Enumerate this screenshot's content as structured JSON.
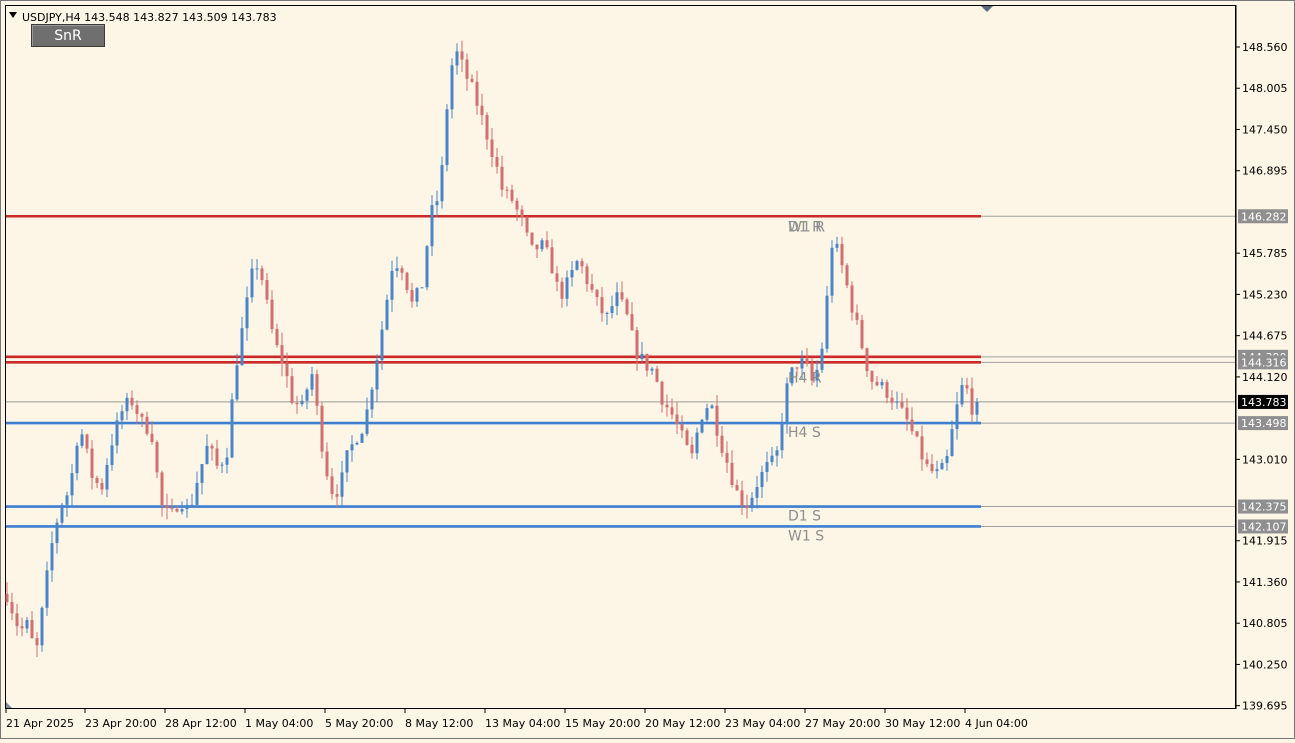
{
  "symbol_line": "USDJPY,H4  143.548 143.827 143.509 143.783",
  "snr_button": {
    "label": "SnR"
  },
  "colors": {
    "background": "#fdf5e6",
    "bull": "#4a86c7",
    "bear": "#d07070",
    "resistance": "#cc2a2a",
    "support": "#3f7fd0",
    "price_tag": "#8f8f8f",
    "current_tag": "#000000",
    "level_text": "#8e8e8e"
  },
  "chart_data": {
    "type": "candlestick",
    "title": "USDJPY,H4",
    "ohlc_header": {
      "open": 143.548,
      "high": 143.827,
      "low": 143.509,
      "close": 143.783
    },
    "ylim": [
      139.6,
      149.05
    ],
    "y_ticks": [
      "148.560",
      "148.005",
      "147.450",
      "146.895",
      "145.785",
      "145.230",
      "144.675",
      "144.120",
      "143.010",
      "141.915",
      "141.360",
      "140.805",
      "140.250",
      "139.695"
    ],
    "x_ticks": [
      "21 Apr 2025",
      "23 Apr 20:00",
      "28 Apr 12:00",
      "1 May 04:00",
      "5 May 20:00",
      "8 May 12:00",
      "13 May 04:00",
      "15 May 20:00",
      "20 May 12:00",
      "23 May 04:00",
      "27 May 20:00",
      "30 May 12:00",
      "4 Jun 04:00"
    ],
    "candle_count": 195,
    "waypoints": [
      [
        0,
        141.2
      ],
      [
        4,
        140.7
      ],
      [
        7,
        140.8
      ],
      [
        9,
        140.3
      ],
      [
        11,
        140.9
      ],
      [
        14,
        141.8
      ],
      [
        17,
        142.4
      ],
      [
        20,
        142.6
      ],
      [
        23,
        143.5
      ],
      [
        27,
        142.8
      ],
      [
        30,
        142.6
      ],
      [
        33,
        143.2
      ],
      [
        37,
        143.7
      ],
      [
        40,
        143.8
      ],
      [
        43,
        143.5
      ],
      [
        46,
        143.4
      ],
      [
        49,
        142.4
      ],
      [
        52,
        142.2
      ],
      [
        55,
        142.5
      ],
      [
        58,
        142.3
      ],
      [
        61,
        142.8
      ],
      [
        64,
        143.2
      ],
      [
        67,
        142.9
      ],
      [
        70,
        143.1
      ],
      [
        73,
        144.3
      ],
      [
        76,
        145.0
      ],
      [
        79,
        145.7
      ],
      [
        81,
        145.5
      ],
      [
        84,
        144.8
      ],
      [
        86,
        144.5
      ],
      [
        88,
        144.3
      ],
      [
        91,
        143.8
      ],
      [
        94,
        143.7
      ],
      [
        97,
        144.2
      ],
      [
        100,
        143.3
      ],
      [
        103,
        142.6
      ],
      [
        106,
        142.6
      ],
      [
        108,
        143.0
      ],
      [
        111,
        143.3
      ],
      [
        114,
        143.5
      ],
      [
        117,
        144.2
      ],
      [
        120,
        144.9
      ],
      [
        123,
        145.7
      ],
      [
        126,
        145.6
      ],
      [
        129,
        145.1
      ],
      [
        132,
        145.3
      ],
      [
        135,
        146.3
      ],
      [
        138,
        146.6
      ],
      [
        141,
        148.2
      ],
      [
        143,
        148.5
      ],
      [
        146,
        148.2
      ],
      [
        149,
        147.9
      ],
      [
        152,
        147.5
      ],
      [
        155,
        147.1
      ],
      [
        158,
        146.6
      ],
      [
        161,
        146.5
      ],
      [
        164,
        146.2
      ],
      [
        167,
        145.8
      ],
      [
        170,
        145.9
      ],
      [
        173,
        145.7
      ],
      [
        176,
        145.2
      ],
      [
        179,
        145.4
      ],
      [
        182,
        145.7
      ],
      [
        185,
        145.4
      ],
      [
        188,
        145.1
      ],
      [
        191,
        144.9
      ],
      [
        194,
        145.2
      ],
      [
        197,
        145.0
      ],
      [
        200,
        144.5
      ],
      [
        203,
        144.3
      ],
      [
        206,
        144.2
      ],
      [
        209,
        143.8
      ],
      [
        212,
        143.6
      ],
      [
        215,
        143.3
      ],
      [
        218,
        143.0
      ],
      [
        221,
        143.6
      ],
      [
        224,
        143.8
      ],
      [
        227,
        143.3
      ],
      [
        230,
        142.9
      ],
      [
        233,
        142.5
      ],
      [
        236,
        142.4
      ],
      [
        239,
        142.7
      ],
      [
        242,
        142.9
      ],
      [
        245,
        143.0
      ],
      [
        248,
        143.9
      ],
      [
        251,
        144.3
      ],
      [
        254,
        144.3
      ],
      [
        257,
        144.0
      ],
      [
        260,
        144.6
      ],
      [
        263,
        146.0
      ],
      [
        266,
        145.6
      ],
      [
        269,
        145.1
      ],
      [
        272,
        144.6
      ],
      [
        275,
        144.1
      ],
      [
        278,
        144.0
      ],
      [
        281,
        143.9
      ],
      [
        284,
        143.7
      ],
      [
        287,
        143.5
      ],
      [
        290,
        143.2
      ],
      [
        293,
        142.9
      ],
      [
        296,
        142.8
      ],
      [
        299,
        142.9
      ],
      [
        302,
        143.6
      ],
      [
        305,
        144.1
      ],
      [
        307,
        143.7
      ],
      [
        309,
        143.78
      ]
    ],
    "levels": [
      {
        "name": "W1 R",
        "price": 146.282,
        "kind": "resistance",
        "label": "W1 R",
        "tag": "146.282"
      },
      {
        "name": "D1 R",
        "price": 146.282,
        "kind": "resistance",
        "label": "D1 R"
      },
      {
        "name": "H4 R upper",
        "price": 144.39,
        "kind": "resistance",
        "tag": "144.390"
      },
      {
        "name": "H4 R lower",
        "price": 144.316,
        "kind": "resistance",
        "label": "H4 R",
        "tag": "144.316"
      },
      {
        "name": "H4 S",
        "price": 143.498,
        "kind": "support",
        "label": "H4 S",
        "tag": "143.498"
      },
      {
        "name": "D1 S",
        "price": 142.375,
        "kind": "support",
        "label": "D1 S",
        "tag": "142.375"
      },
      {
        "name": "W1 S",
        "price": 142.107,
        "kind": "support",
        "label": "W1 S",
        "tag": "142.107"
      }
    ],
    "current_price": {
      "price": 143.783,
      "tag": "143.783"
    },
    "grid": false,
    "legend": "none"
  }
}
